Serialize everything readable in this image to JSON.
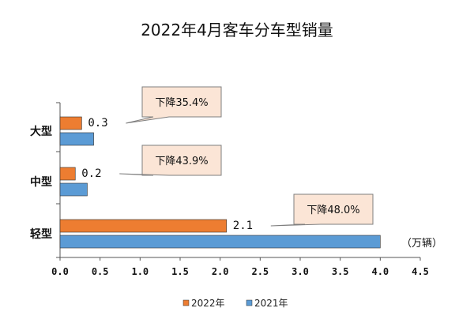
{
  "chart_data": {
    "type": "bar",
    "orientation": "horizontal",
    "title": "2022年4月客车分车型销量",
    "unit_label": "（万辆）",
    "categories": [
      "大型",
      "中型",
      "轻型"
    ],
    "series": [
      {
        "name": "2022年",
        "color": "#ED7D31",
        "values": [
          0.27,
          0.19,
          2.08
        ]
      },
      {
        "name": "2021年",
        "color": "#5B9BD5",
        "values": [
          0.42,
          0.34,
          4.0
        ]
      }
    ],
    "data_labels": [
      "0.3",
      "0.2",
      "2.1"
    ],
    "callouts": [
      "下降35.4%",
      "下降43.9%",
      "下降48.0%"
    ],
    "x_ticks": [
      "0.0",
      "0.5",
      "1.0",
      "1.5",
      "2.0",
      "2.5",
      "3.0",
      "3.5",
      "4.0",
      "4.5"
    ],
    "xlim": [
      0,
      4.5
    ],
    "grid": false,
    "legend_position": "bottom"
  }
}
